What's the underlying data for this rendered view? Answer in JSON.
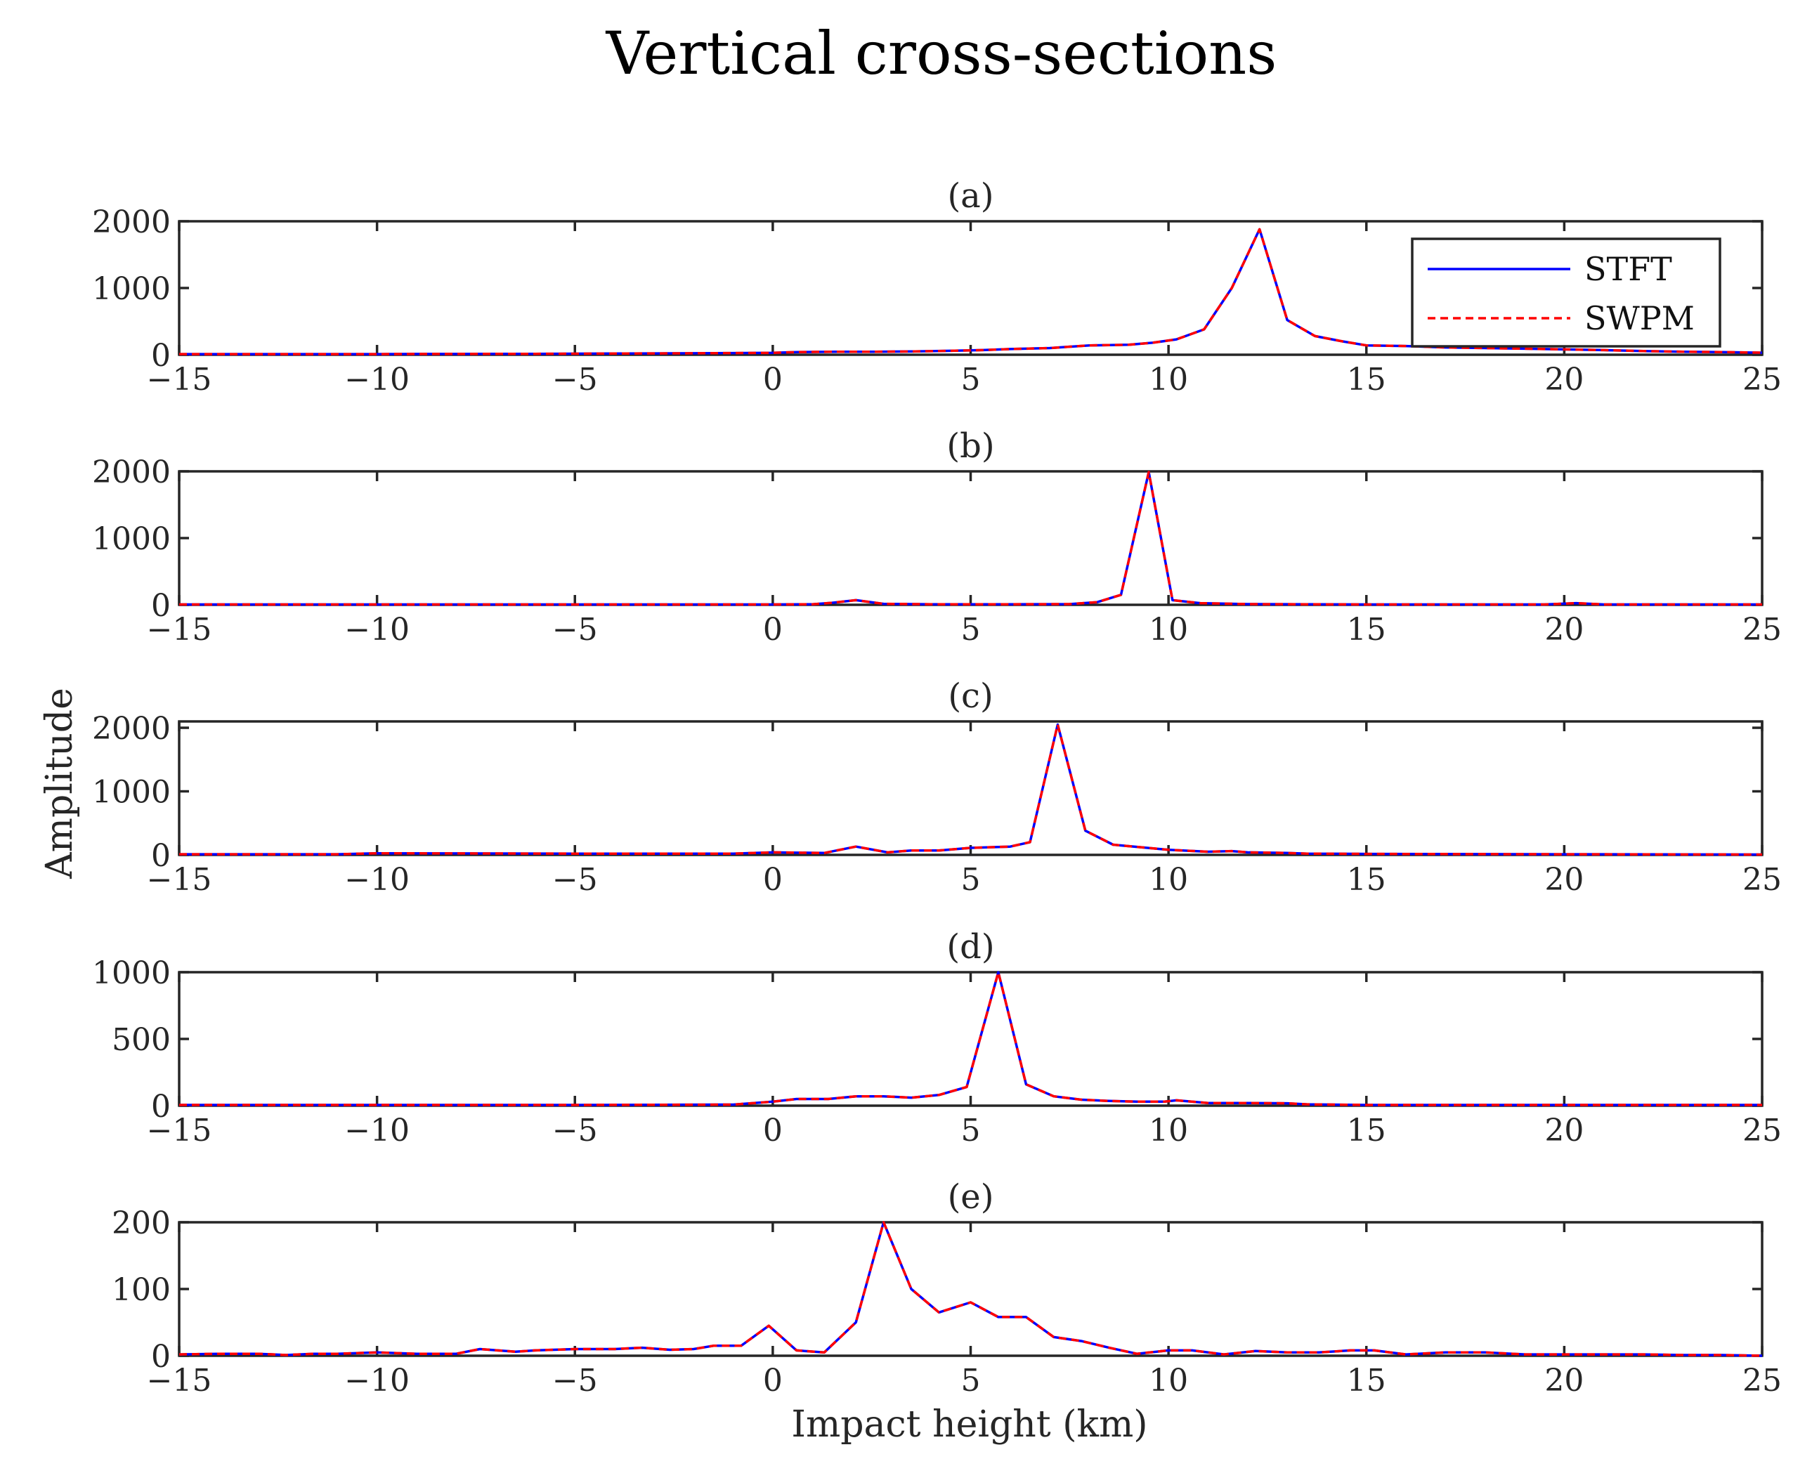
{
  "figure": {
    "title": "Vertical cross-sections",
    "xlabel": "Impact height (km)",
    "ylabel": "Amplitude"
  },
  "legend": {
    "placement": "top-right of panel (a)",
    "entries": [
      {
        "label": "STFT",
        "color": "#0000ff",
        "style": "solid"
      },
      {
        "label": "SWPM",
        "color": "#ff0000",
        "style": "dashed"
      }
    ]
  },
  "colors": {
    "stft": "#0000ff",
    "swpm": "#ff0000",
    "axes": "#262626"
  },
  "chart_data": [
    {
      "type": "line",
      "title": "(a)",
      "xlim": [
        -15,
        25
      ],
      "ylim": [
        0,
        2000
      ],
      "xticks": [
        "−15",
        "−10",
        "−5",
        "0",
        "5",
        "10",
        "15",
        "20",
        "25"
      ],
      "yticks": [
        "0",
        "1000",
        "2000"
      ],
      "x": [
        -15,
        -14,
        -13,
        -12,
        -11,
        -10,
        -9,
        -8,
        -7,
        -6,
        -5,
        -4,
        -3,
        -2,
        -1,
        0,
        0.6,
        1.6,
        2.6,
        3.6,
        4.6,
        5.3,
        6,
        7,
        8,
        9,
        9.6,
        10.2,
        10.9,
        11.6,
        12.3,
        13,
        13.7,
        14.4,
        15,
        16,
        17,
        18,
        19,
        20,
        21,
        22,
        23,
        24,
        25
      ],
      "series": [
        {
          "name": "STFT",
          "values": [
            10,
            10,
            10,
            10,
            10,
            10,
            12,
            12,
            14,
            14,
            16,
            18,
            20,
            22,
            25,
            28,
            40,
            45,
            45,
            50,
            60,
            70,
            85,
            100,
            140,
            150,
            180,
            230,
            380,
            1000,
            1880,
            520,
            280,
            200,
            140,
            130,
            110,
            100,
            90,
            80,
            70,
            55,
            45,
            40,
            30
          ]
        },
        {
          "name": "SWPM",
          "values": [
            10,
            10,
            10,
            10,
            10,
            10,
            12,
            12,
            14,
            14,
            16,
            18,
            20,
            22,
            25,
            28,
            40,
            45,
            45,
            50,
            60,
            70,
            85,
            100,
            140,
            150,
            180,
            230,
            380,
            1000,
            1880,
            520,
            280,
            200,
            140,
            130,
            110,
            100,
            90,
            80,
            70,
            55,
            45,
            40,
            30
          ]
        }
      ]
    },
    {
      "type": "line",
      "title": "(b)",
      "xlim": [
        -15,
        25
      ],
      "ylim": [
        0,
        2000
      ],
      "xticks": [
        "−15",
        "−10",
        "−5",
        "0",
        "5",
        "10",
        "15",
        "20",
        "25"
      ],
      "yticks": [
        "0",
        "1000",
        "2000"
      ],
      "x": [
        -15,
        -10,
        -5,
        0,
        1,
        1.5,
        2.1,
        2.8,
        4,
        6,
        7.5,
        8.2,
        8.8,
        9.5,
        10.1,
        10.8,
        12,
        15,
        19.5,
        20.3,
        21,
        25
      ],
      "series": [
        {
          "name": "STFT",
          "values": [
            5,
            5,
            5,
            5,
            8,
            30,
            70,
            15,
            8,
            8,
            10,
            40,
            150,
            1990,
            70,
            25,
            10,
            5,
            5,
            25,
            5,
            5
          ]
        },
        {
          "name": "SWPM",
          "values": [
            5,
            5,
            5,
            5,
            8,
            30,
            70,
            15,
            8,
            8,
            10,
            40,
            150,
            1990,
            70,
            25,
            10,
            5,
            5,
            25,
            5,
            5
          ]
        }
      ]
    },
    {
      "type": "line",
      "title": "(c)",
      "xlim": [
        -15,
        25
      ],
      "ylim": [
        0,
        2100
      ],
      "xticks": [
        "−15",
        "−10",
        "−5",
        "0",
        "5",
        "10",
        "15",
        "20",
        "25"
      ],
      "yticks": [
        "0",
        "1000",
        "2000"
      ],
      "x": [
        -15,
        -11,
        -10,
        -5,
        -1,
        0,
        1.3,
        2.1,
        2.9,
        3.5,
        4.2,
        5,
        6,
        6.5,
        7.2,
        7.9,
        8.6,
        9.3,
        10,
        11,
        11.6,
        12,
        13,
        13.5,
        15,
        20,
        25
      ],
      "series": [
        {
          "name": "STFT",
          "values": [
            10,
            10,
            25,
            20,
            20,
            40,
            30,
            130,
            40,
            70,
            70,
            110,
            130,
            200,
            2050,
            380,
            160,
            120,
            80,
            50,
            60,
            40,
            30,
            20,
            15,
            10,
            5
          ]
        },
        {
          "name": "SWPM",
          "values": [
            10,
            10,
            25,
            20,
            20,
            40,
            30,
            130,
            40,
            70,
            70,
            110,
            130,
            200,
            2050,
            380,
            160,
            120,
            80,
            50,
            60,
            40,
            30,
            20,
            15,
            10,
            5
          ]
        }
      ]
    },
    {
      "type": "line",
      "title": "(d)",
      "xlim": [
        -15,
        25
      ],
      "ylim": [
        0,
        1000
      ],
      "xticks": [
        "−15",
        "−10",
        "−5",
        "0",
        "5",
        "10",
        "15",
        "20",
        "25"
      ],
      "yticks": [
        "0",
        "500",
        "1000"
      ],
      "x": [
        -15,
        -5,
        -1,
        0,
        0.6,
        1.4,
        2.1,
        2.8,
        3.5,
        4.2,
        4.9,
        5.7,
        6.4,
        7.1,
        7.8,
        8.5,
        9.2,
        9.9,
        10.2,
        11,
        12,
        13,
        13.5,
        15,
        20,
        25
      ],
      "series": [
        {
          "name": "STFT",
          "values": [
            5,
            5,
            8,
            30,
            50,
            50,
            70,
            70,
            60,
            80,
            140,
            1000,
            160,
            70,
            45,
            35,
            30,
            30,
            40,
            20,
            20,
            18,
            10,
            5,
            5,
            5
          ]
        },
        {
          "name": "SWPM",
          "values": [
            5,
            5,
            8,
            30,
            50,
            50,
            70,
            70,
            60,
            80,
            140,
            1000,
            160,
            70,
            45,
            35,
            30,
            30,
            40,
            20,
            20,
            18,
            10,
            5,
            5,
            5
          ]
        }
      ]
    },
    {
      "type": "line",
      "title": "(e)",
      "xlim": [
        -15,
        25
      ],
      "ylim": [
        0,
        200
      ],
      "xticks": [
        "−15",
        "−10",
        "−5",
        "0",
        "5",
        "10",
        "15",
        "20",
        "25"
      ],
      "yticks": [
        "0",
        "100",
        "200"
      ],
      "x": [
        -15,
        -14,
        -13,
        -12.3,
        -11.6,
        -11,
        -10,
        -9,
        -8,
        -7.4,
        -6.5,
        -6,
        -5,
        -4,
        -3.3,
        -2.6,
        -2,
        -1.5,
        -0.8,
        -0.1,
        0.6,
        1.3,
        2.1,
        2.8,
        3.5,
        4.2,
        5,
        5.7,
        6.4,
        7.1,
        7.8,
        8.5,
        9.2,
        10,
        10.6,
        11.4,
        12.2,
        13,
        13.8,
        14.6,
        15.2,
        16,
        17,
        18,
        19,
        20,
        21,
        22,
        23,
        24,
        25
      ],
      "series": [
        {
          "name": "STFT",
          "values": [
            2,
            3,
            3,
            1,
            3,
            3,
            5,
            3,
            3,
            10,
            6,
            8,
            10,
            10,
            12,
            9,
            10,
            15,
            15,
            45,
            8,
            5,
            50,
            200,
            100,
            65,
            80,
            58,
            58,
            28,
            22,
            12,
            3,
            8,
            8,
            2,
            7,
            5,
            5,
            8,
            8,
            2,
            5,
            5,
            2,
            2,
            2,
            2,
            1,
            1,
            0
          ]
        },
        {
          "name": "SWPM",
          "values": [
            2,
            3,
            3,
            1,
            3,
            3,
            5,
            3,
            3,
            10,
            6,
            8,
            10,
            10,
            12,
            9,
            10,
            15,
            15,
            45,
            8,
            5,
            50,
            200,
            100,
            65,
            80,
            58,
            58,
            28,
            22,
            12,
            3,
            8,
            8,
            2,
            7,
            5,
            5,
            8,
            8,
            2,
            5,
            5,
            2,
            2,
            2,
            2,
            1,
            1,
            0
          ]
        }
      ]
    }
  ]
}
